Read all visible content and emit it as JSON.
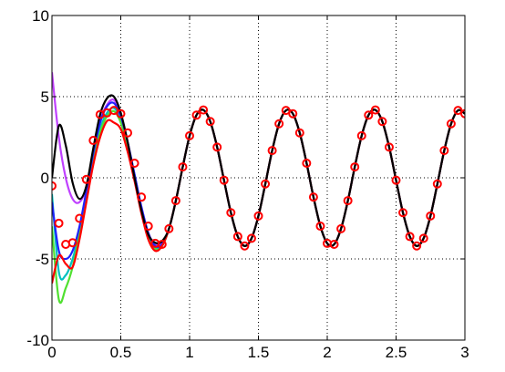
{
  "chart_data": {
    "type": "line",
    "x": [
      0,
      0.05,
      0.1,
      0.15,
      0.2,
      0.25,
      0.3,
      0.35,
      0.4,
      0.45,
      0.5,
      0.55,
      0.6,
      0.65,
      0.7,
      0.75,
      0.8,
      0.85,
      0.9,
      0.95,
      1,
      1.05,
      1.1,
      1.15,
      1.2,
      1.25,
      1.3,
      1.35,
      1.4,
      1.45,
      1.5,
      1.55,
      1.6,
      1.65,
      1.7,
      1.75,
      1.8,
      1.85,
      1.9,
      1.95,
      2,
      2.05,
      2.1,
      2.15,
      2.2,
      2.25,
      2.3,
      2.35,
      2.4,
      2.45,
      2.5,
      2.55,
      2.6,
      2.65,
      2.7,
      2.75,
      2.8,
      2.85,
      2.9,
      2.95,
      3
    ],
    "series": [
      {
        "color": "#bf40ff",
        "linestyle": "solid",
        "values": [
          6.5,
          2.5,
          0.0,
          -1.3,
          -1.5,
          -0.6,
          1.5,
          3.5,
          4.5,
          4.8,
          3.9,
          2.2,
          0.2,
          -1.8,
          -3.4,
          -4.1,
          -4.0,
          -3.14,
          -1.41,
          0.67,
          2.59,
          3.86,
          4.18,
          3.47,
          1.89,
          -0.15,
          -2.15,
          -3.62,
          -4.2,
          -3.73,
          -2.35,
          -0.38,
          1.68,
          3.33,
          4.15,
          3.95,
          2.77,
          0.9,
          -1.19,
          -2.98,
          -4.04,
          -4.1,
          -3.14,
          -1.41,
          0.67,
          2.59,
          3.86,
          4.18,
          3.47,
          1.89,
          -0.15,
          -2.15,
          -3.62,
          -4.2,
          -3.73,
          -2.35,
          -0.38,
          1.68,
          3.33,
          4.15,
          3.95
        ]
      },
      {
        "color": "#00c0c0",
        "linestyle": "solid",
        "values": [
          -1.0,
          -5.8,
          -6.0,
          -5.0,
          -3.3,
          -1.0,
          1.2,
          3.0,
          4.0,
          4.3,
          3.6,
          2.1,
          0.2,
          -1.9,
          -3.5,
          -4.3,
          -4.2,
          -3.14,
          -1.41,
          0.67,
          2.59,
          3.86,
          4.18,
          3.47,
          1.89,
          -0.15,
          -2.15,
          -3.62,
          -4.2,
          -3.73,
          -2.35,
          -0.38,
          1.68,
          3.33,
          4.15,
          3.95,
          2.77,
          0.9,
          -1.19,
          -2.98,
          -4.04,
          -4.1,
          -3.14,
          -1.41,
          0.67,
          2.59,
          3.86,
          4.18,
          3.47,
          1.89,
          -0.15,
          -2.15,
          -3.62,
          -4.2,
          -3.73,
          -2.35,
          -0.38,
          1.68,
          3.33,
          4.15,
          3.95
        ]
      },
      {
        "color": "#50e030",
        "linestyle": "solid",
        "values": [
          -3.0,
          -7.5,
          -6.8,
          -5.5,
          -3.5,
          -1.2,
          1.0,
          2.8,
          3.8,
          4.1,
          3.4,
          1.9,
          0.0,
          -2.0,
          -3.6,
          -4.4,
          -4.2,
          -3.14,
          -1.41,
          0.67,
          2.59,
          3.86,
          4.18,
          3.47,
          1.89,
          -0.15,
          -2.15,
          -3.62,
          -4.2,
          -3.73,
          -2.35,
          -0.38,
          1.68,
          3.33,
          4.15,
          3.95,
          2.77,
          0.9,
          -1.19,
          -2.98,
          -4.04,
          -4.1,
          -3.14,
          -1.41,
          0.67,
          2.59,
          3.86,
          4.18,
          3.47,
          1.89,
          -0.15,
          -2.15,
          -3.62,
          -4.2,
          -3.73,
          -2.35,
          -0.38,
          1.68,
          3.33,
          4.15,
          3.95
        ]
      },
      {
        "color": "#2020ff",
        "linestyle": "solid",
        "values": [
          -1.5,
          -4.5,
          -5.0,
          -4.5,
          -3.0,
          -0.8,
          1.5,
          3.4,
          4.4,
          4.6,
          3.8,
          2.2,
          0.2,
          -1.8,
          -3.4,
          -4.2,
          -4.1,
          -3.14,
          -1.41,
          0.67,
          2.59,
          3.86,
          4.18,
          3.47,
          1.89,
          -0.15,
          -2.15,
          -3.62,
          -4.2,
          -3.73,
          -2.35,
          -0.38,
          1.68,
          3.33,
          4.15,
          3.95,
          2.77,
          0.9,
          -1.19,
          -2.98,
          -4.04,
          -4.1,
          -3.14,
          -1.41,
          0.67,
          2.59,
          3.86,
          4.18,
          3.47,
          1.89,
          -0.15,
          -2.15,
          -3.62,
          -4.2,
          -3.73,
          -2.35,
          -0.38,
          1.68,
          3.33,
          4.15,
          3.95
        ]
      },
      {
        "color": "#ff0000",
        "linestyle": "solid",
        "values": [
          -6.5,
          -4.8,
          -5.3,
          -5.5,
          -3.8,
          -1.5,
          0.8,
          2.5,
          3.5,
          3.4,
          3.0,
          1.6,
          -0.2,
          -2.2,
          -3.8,
          -4.5,
          -4.2,
          -3.14,
          -1.41,
          0.67,
          2.59,
          3.86,
          4.18,
          3.47,
          1.89,
          -0.15,
          -2.15,
          -3.62,
          -4.2,
          -3.73,
          -2.35,
          -0.38,
          1.68,
          3.33,
          4.15,
          3.95,
          2.77,
          0.9,
          -1.19,
          -2.98,
          -4.04,
          -4.1,
          -3.14,
          -1.41,
          0.67,
          2.59,
          3.86,
          4.18,
          3.47,
          1.89,
          -0.15,
          -2.15,
          -3.62,
          -4.2,
          -3.73,
          -2.35,
          -0.38,
          1.68,
          3.33,
          4.15,
          3.95
        ]
      },
      {
        "color": "#000000",
        "linestyle": "solid",
        "values": [
          0.0,
          3.2,
          2.0,
          -0.3,
          -1.3,
          -0.5,
          1.8,
          3.9,
          4.9,
          5.0,
          4.0,
          2.2,
          0.0,
          -2.0,
          -3.5,
          -4.0,
          -3.9,
          -3.14,
          -1.41,
          0.67,
          2.59,
          3.86,
          4.18,
          3.47,
          1.89,
          -0.15,
          -2.15,
          -3.62,
          -4.2,
          -3.73,
          -2.35,
          -0.38,
          1.68,
          3.33,
          4.15,
          3.95,
          2.77,
          0.9,
          -1.19,
          -2.98,
          -4.04,
          -4.1,
          -3.14,
          -1.41,
          0.67,
          2.59,
          3.86,
          4.18,
          3.47,
          1.89,
          -0.15,
          -2.15,
          -3.62,
          -4.2,
          -3.73,
          -2.35,
          -0.38,
          1.68,
          3.33,
          4.15,
          3.95
        ]
      },
      {
        "color": "#ff0000",
        "linestyle": "none",
        "marker": "o",
        "values": [
          -0.5,
          -2.8,
          -4.1,
          -4.0,
          -2.5,
          -0.1,
          2.3,
          3.9,
          4.0,
          4.15,
          3.95,
          2.77,
          0.9,
          -1.19,
          -2.98,
          -4.04,
          -4.1,
          -3.14,
          -1.41,
          0.67,
          2.59,
          3.86,
          4.18,
          3.47,
          1.89,
          -0.15,
          -2.15,
          -3.62,
          -4.2,
          -3.73,
          -2.35,
          -0.38,
          1.68,
          3.33,
          4.15,
          3.95,
          2.77,
          0.9,
          -1.19,
          -2.98,
          -4.04,
          -4.1,
          -3.14,
          -1.41,
          0.67,
          2.59,
          3.86,
          4.18,
          3.47,
          1.89,
          -0.15,
          -2.15,
          -3.62,
          -4.2,
          -3.73,
          -2.35,
          -0.38,
          1.68,
          3.33,
          4.15,
          3.95
        ]
      }
    ],
    "xlim": [
      0,
      3
    ],
    "xticks": [
      0,
      0.5,
      1,
      1.5,
      2,
      2.5,
      3
    ],
    "ylim": [
      -10,
      10
    ],
    "yticks": [
      -10,
      -5,
      0,
      5,
      10
    ],
    "grid": true
  }
}
